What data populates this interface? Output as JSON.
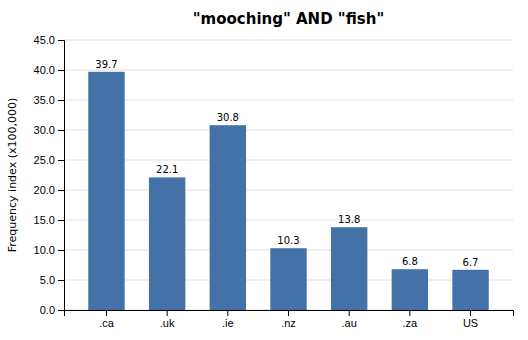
{
  "chart_data": {
    "type": "bar",
    "title": "\"mooching\" AND \"fish\"",
    "ylabel": "Frequency index (x100,000)",
    "categories": [
      ".ca",
      ".uk",
      ".ie",
      ".nz",
      ".au",
      ".za",
      "US"
    ],
    "values": [
      39.7,
      22.1,
      30.8,
      10.3,
      13.8,
      6.8,
      6.7
    ],
    "color": "#4472a8",
    "ylim": [
      0,
      45
    ],
    "yticks": [
      {
        "value": 0.0,
        "label": "0.0"
      },
      {
        "value": 5.0,
        "label": "5.0"
      },
      {
        "value": 10.0,
        "label": "10.0"
      },
      {
        "value": 15.0,
        "label": "15.0"
      },
      {
        "value": 20.0,
        "label": "20.0"
      },
      {
        "value": 25.0,
        "label": "25.0"
      },
      {
        "value": 30.0,
        "label": "30.0"
      },
      {
        "value": 35.0,
        "label": "35.0"
      },
      {
        "value": 40.0,
        "label": "40.0"
      },
      {
        "value": 45.0,
        "label": "45.0"
      }
    ],
    "grid": true,
    "data_labels": true
  }
}
